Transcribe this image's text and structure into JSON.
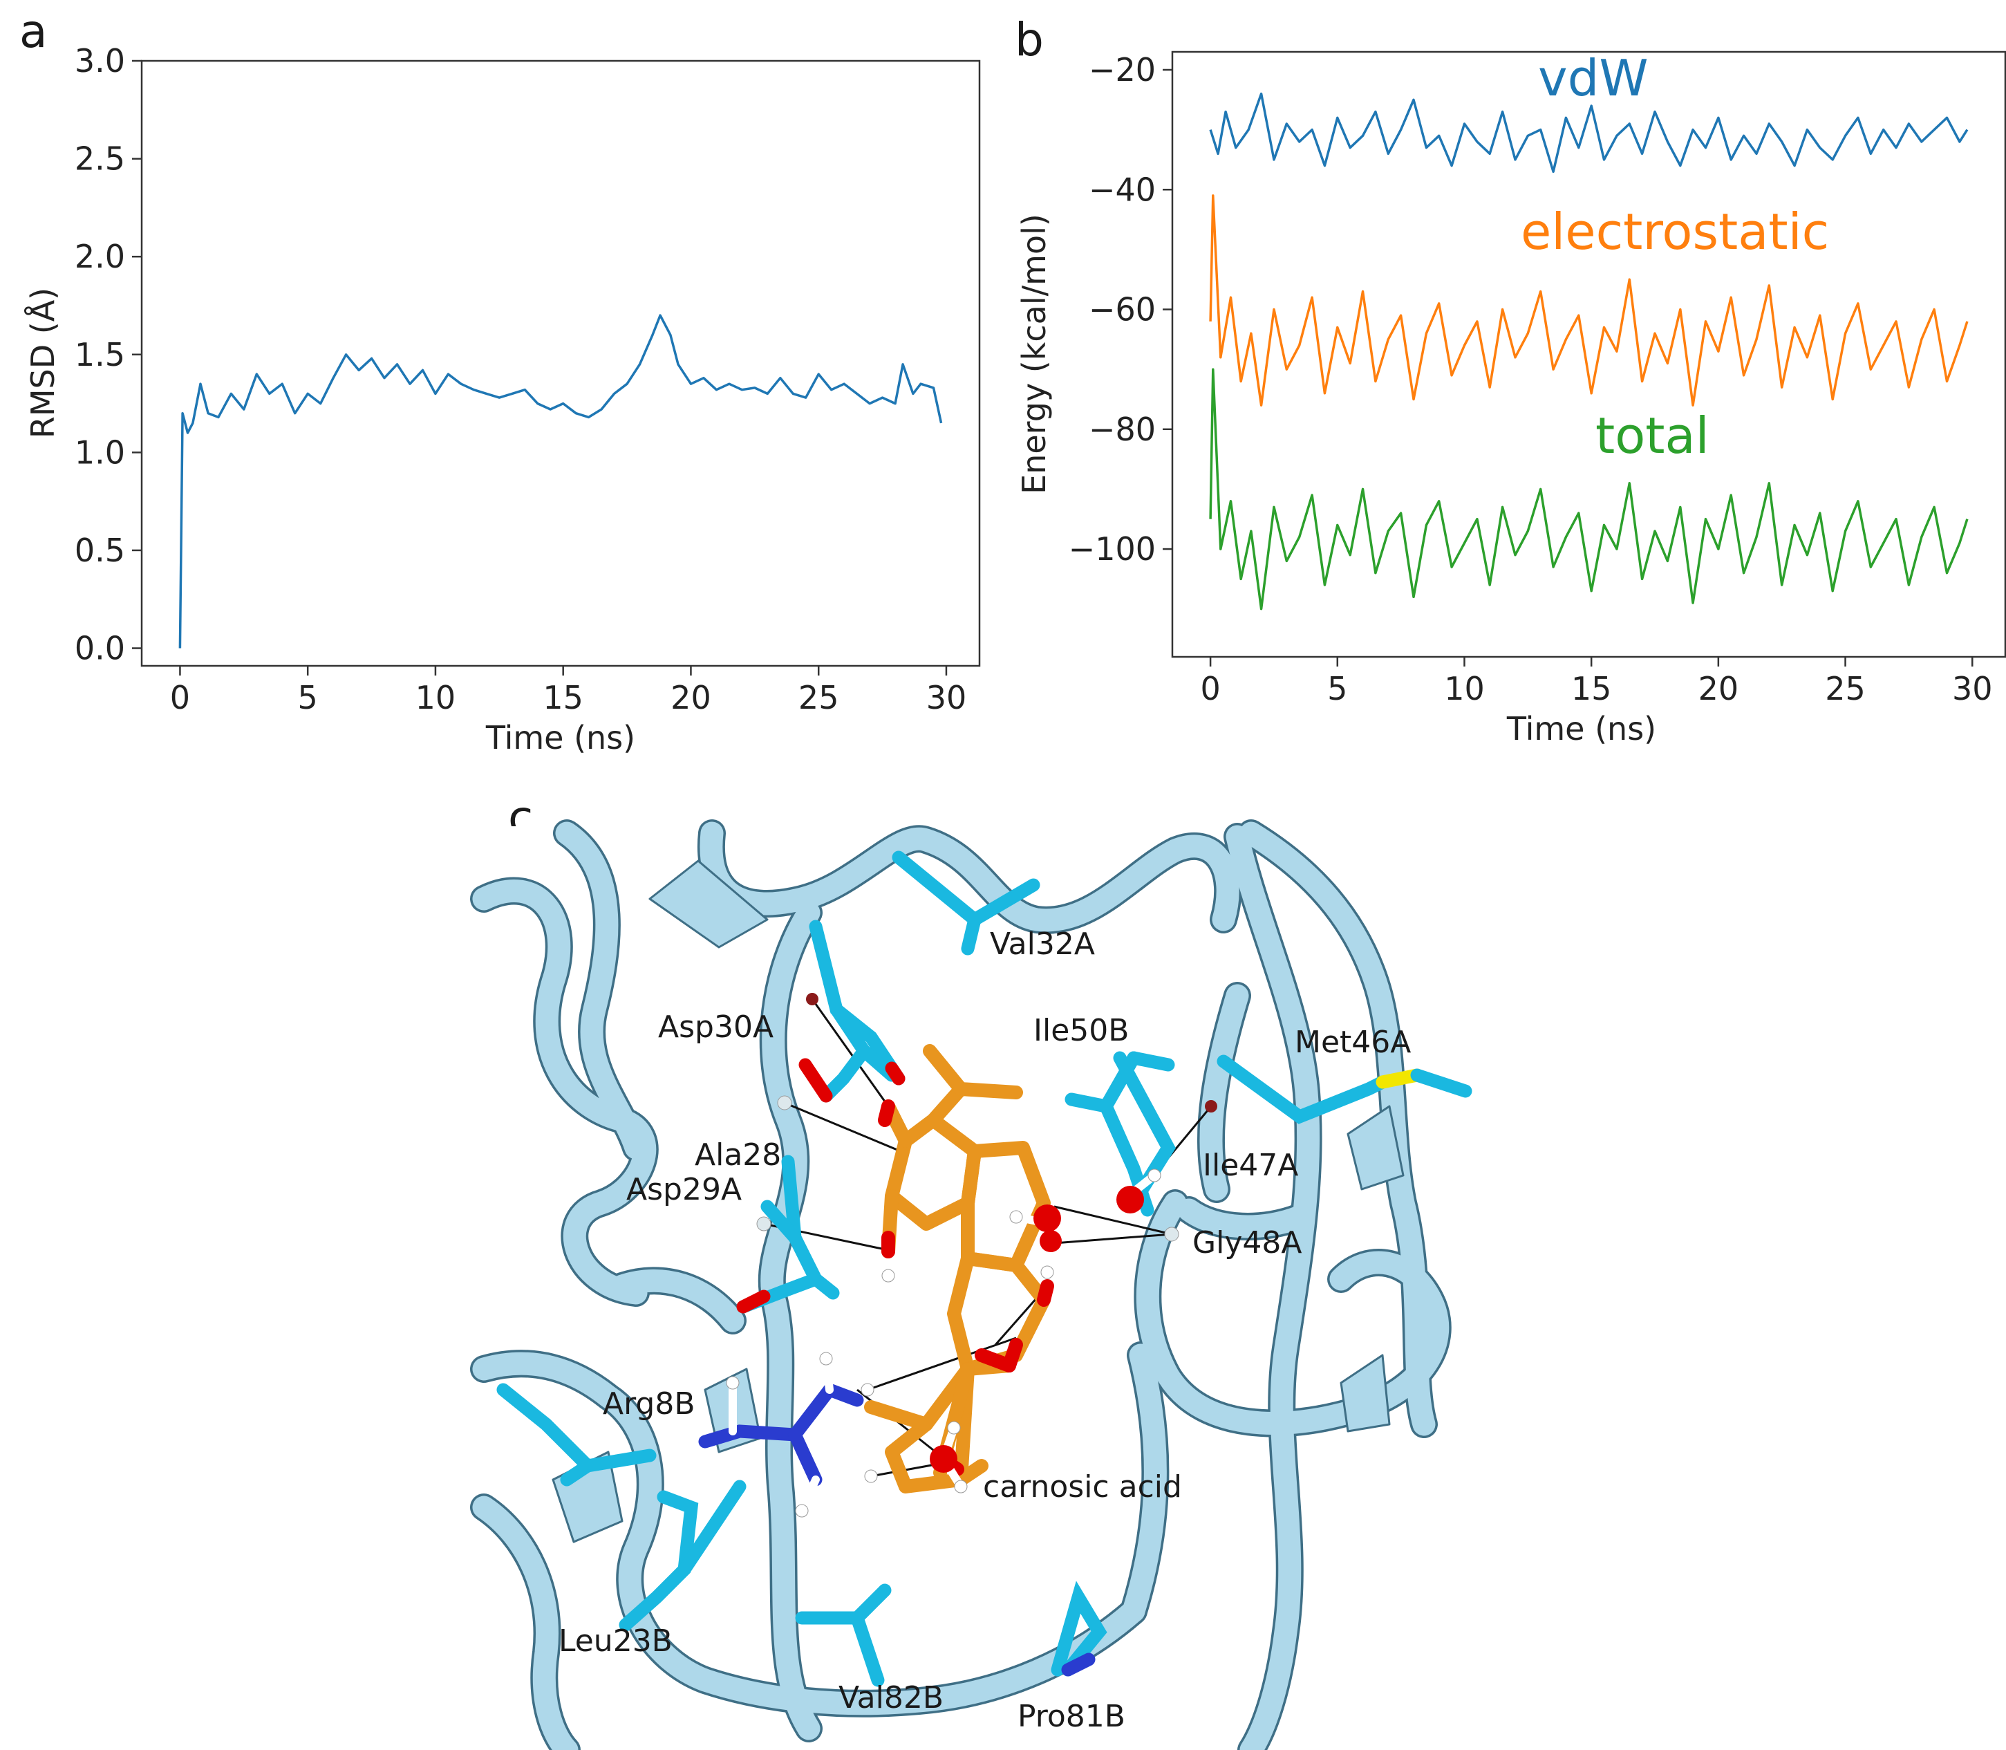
{
  "panels": {
    "a": "a",
    "b": "b",
    "c": "c"
  },
  "colors": {
    "blue": "#1f77b4",
    "orange": "#ff7f0e",
    "green": "#2ca02c",
    "ribbon": "#aed8ea",
    "ribbon_edge": "#3f6f86",
    "residue": "#1ab8e0",
    "ligand": "#e8951f",
    "oxygen": "#e00000",
    "nitrogen": "#2a3ccf",
    "sulfur": "#f2e600"
  },
  "chart_data": [
    {
      "type": "line",
      "panel": "a",
      "title": "",
      "xlabel": "Time (ns)",
      "ylabel": "RMSD (Å)",
      "xlim": [
        -1.5,
        31.3
      ],
      "ylim": [
        -0.09,
        3.0
      ],
      "xticks": [
        0,
        5,
        10,
        15,
        20,
        25,
        30
      ],
      "yticks": [
        0.0,
        0.5,
        1.0,
        1.5,
        2.0,
        2.5,
        3.0
      ],
      "ytick_labels": [
        "0.0",
        "0.5",
        "1.0",
        "1.5",
        "2.0",
        "2.5",
        "3.0"
      ],
      "series": [
        {
          "color": "#1f77b4",
          "x": [
            0,
            0.1,
            0.3,
            0.5,
            0.8,
            1.1,
            1.5,
            2.0,
            2.5,
            3.0,
            3.5,
            4.0,
            4.5,
            5.0,
            5.5,
            6.0,
            6.5,
            7.0,
            7.5,
            8.0,
            8.5,
            9.0,
            9.5,
            10.0,
            10.5,
            11.0,
            11.5,
            12.0,
            12.5,
            13.0,
            13.5,
            14.0,
            14.5,
            15.0,
            15.5,
            16.0,
            16.5,
            17.0,
            17.5,
            18.0,
            18.5,
            18.8,
            19.2,
            19.5,
            20.0,
            20.5,
            21.0,
            21.5,
            22.0,
            22.5,
            23.0,
            23.5,
            24.0,
            24.5,
            25.0,
            25.5,
            26.0,
            26.5,
            27.0,
            27.5,
            28.0,
            28.3,
            28.7,
            29.0,
            29.5,
            29.8
          ],
          "values": [
            0.0,
            1.2,
            1.1,
            1.15,
            1.35,
            1.2,
            1.18,
            1.3,
            1.22,
            1.4,
            1.3,
            1.35,
            1.2,
            1.3,
            1.25,
            1.38,
            1.5,
            1.42,
            1.48,
            1.38,
            1.45,
            1.35,
            1.42,
            1.3,
            1.4,
            1.35,
            1.32,
            1.3,
            1.28,
            1.3,
            1.32,
            1.25,
            1.22,
            1.25,
            1.2,
            1.18,
            1.22,
            1.3,
            1.35,
            1.45,
            1.6,
            1.7,
            1.6,
            1.45,
            1.35,
            1.38,
            1.32,
            1.35,
            1.32,
            1.33,
            1.3,
            1.38,
            1.3,
            1.28,
            1.4,
            1.32,
            1.35,
            1.3,
            1.25,
            1.28,
            1.25,
            1.45,
            1.3,
            1.35,
            1.33,
            1.15
          ]
        }
      ]
    },
    {
      "type": "line",
      "panel": "b",
      "title": "",
      "xlabel": "Time (ns)",
      "ylabel": "Energy (kcal/mol)",
      "xlim": [
        -1.5,
        31.3
      ],
      "ylim": [
        -118,
        -17
      ],
      "xticks": [
        0,
        5,
        10,
        15,
        20,
        25,
        30
      ],
      "yticks": [
        -100,
        -80,
        -60,
        -40,
        -20
      ],
      "ytick_labels": [
        "−100",
        "−80",
        "−60",
        "−40",
        "−20"
      ],
      "series": [
        {
          "name": "vdW",
          "color": "#1f77b4",
          "x": [
            0,
            0.3,
            0.6,
            1.0,
            1.5,
            2.0,
            2.5,
            3.0,
            3.5,
            4.0,
            4.5,
            5.0,
            5.5,
            6.0,
            6.5,
            7.0,
            7.5,
            8.0,
            8.5,
            9.0,
            9.5,
            10.0,
            10.5,
            11.0,
            11.5,
            12.0,
            12.5,
            13.0,
            13.5,
            14.0,
            14.5,
            15.0,
            15.5,
            16.0,
            16.5,
            17.0,
            17.5,
            18.0,
            18.5,
            19.0,
            19.5,
            20.0,
            20.5,
            21.0,
            21.5,
            22.0,
            22.5,
            23.0,
            23.5,
            24.0,
            24.5,
            25.0,
            25.5,
            26.0,
            26.5,
            27.0,
            27.5,
            28.0,
            28.5,
            29.0,
            29.5,
            29.8
          ],
          "values": [
            -30,
            -34,
            -27,
            -33,
            -30,
            -24,
            -35,
            -29,
            -32,
            -30,
            -36,
            -28,
            -33,
            -31,
            -27,
            -34,
            -30,
            -25,
            -33,
            -31,
            -36,
            -29,
            -32,
            -34,
            -27,
            -35,
            -31,
            -30,
            -37,
            -28,
            -33,
            -26,
            -35,
            -31,
            -29,
            -34,
            -27,
            -32,
            -36,
            -30,
            -33,
            -28,
            -35,
            -31,
            -34,
            -29,
            -32,
            -36,
            -30,
            -33,
            -35,
            -31,
            -28,
            -34,
            -30,
            -33,
            -29,
            -32,
            -30,
            -28,
            -32,
            -30
          ]
        },
        {
          "name": "electrostatic",
          "color": "#ff7f0e",
          "x": [
            0,
            0.1,
            0.4,
            0.8,
            1.2,
            1.6,
            2.0,
            2.5,
            3.0,
            3.5,
            4.0,
            4.5,
            5.0,
            5.5,
            6.0,
            6.5,
            7.0,
            7.5,
            8.0,
            8.5,
            9.0,
            9.5,
            10.0,
            10.5,
            11.0,
            11.5,
            12.0,
            12.5,
            13.0,
            13.5,
            14.0,
            14.5,
            15.0,
            15.5,
            16.0,
            16.5,
            17.0,
            17.5,
            18.0,
            18.5,
            19.0,
            19.5,
            20.0,
            20.5,
            21.0,
            21.5,
            22.0,
            22.5,
            23.0,
            23.5,
            24.0,
            24.5,
            25.0,
            25.5,
            26.0,
            26.5,
            27.0,
            27.5,
            28.0,
            28.5,
            29.0,
            29.5,
            29.8
          ],
          "values": [
            -62,
            -41,
            -68,
            -58,
            -72,
            -64,
            -76,
            -60,
            -70,
            -66,
            -58,
            -74,
            -63,
            -69,
            -57,
            -72,
            -65,
            -61,
            -75,
            -64,
            -59,
            -71,
            -66,
            -62,
            -73,
            -60,
            -68,
            -64,
            -57,
            -70,
            -65,
            -61,
            -74,
            -63,
            -67,
            -55,
            -72,
            -64,
            -69,
            -60,
            -76,
            -62,
            -67,
            -58,
            -71,
            -65,
            -56,
            -73,
            -63,
            -68,
            -61,
            -75,
            -64,
            -59,
            -70,
            -66,
            -62,
            -73,
            -65,
            -60,
            -72,
            -66,
            -62
          ]
        },
        {
          "name": "total",
          "color": "#2ca02c",
          "x": [
            0,
            0.1,
            0.4,
            0.8,
            1.2,
            1.6,
            2.0,
            2.5,
            3.0,
            3.5,
            4.0,
            4.5,
            5.0,
            5.5,
            6.0,
            6.5,
            7.0,
            7.5,
            8.0,
            8.5,
            9.0,
            9.5,
            10.0,
            10.5,
            11.0,
            11.5,
            12.0,
            12.5,
            13.0,
            13.5,
            14.0,
            14.5,
            15.0,
            15.5,
            16.0,
            16.5,
            17.0,
            17.5,
            18.0,
            18.5,
            19.0,
            19.5,
            20.0,
            20.5,
            21.0,
            21.5,
            22.0,
            22.5,
            23.0,
            23.5,
            24.0,
            24.5,
            25.0,
            25.5,
            26.0,
            26.5,
            27.0,
            27.5,
            28.0,
            28.5,
            29.0,
            29.5,
            29.8
          ],
          "values": [
            -95,
            -70,
            -100,
            -92,
            -105,
            -97,
            -110,
            -93,
            -102,
            -98,
            -91,
            -106,
            -96,
            -101,
            -90,
            -104,
            -97,
            -94,
            -108,
            -96,
            -92,
            -103,
            -99,
            -95,
            -106,
            -93,
            -101,
            -97,
            -90,
            -103,
            -98,
            -94,
            -107,
            -96,
            -100,
            -89,
            -105,
            -97,
            -102,
            -93,
            -109,
            -95,
            -100,
            -91,
            -104,
            -98,
            -89,
            -106,
            -96,
            -101,
            -94,
            -107,
            -97,
            -92,
            -103,
            -99,
            -95,
            -106,
            -98,
            -93,
            -104,
            -99,
            -95
          ]
        }
      ]
    }
  ],
  "figure_c": {
    "labels": {
      "val32a": "Val32A",
      "asp30a": "Asp30A",
      "ile50b": "Ile50B",
      "met46a": "Met46A",
      "ala28": "Ala28",
      "asp29a": "Asp29A",
      "ile47a": "Ile47A",
      "gly48a": "Gly48A",
      "arg8b": "Arg8B",
      "carnosic_acid": "carnosic acid",
      "leu23b": "Leu23B",
      "val82b": "Val82B",
      "pro81b": "Pro81B"
    }
  }
}
